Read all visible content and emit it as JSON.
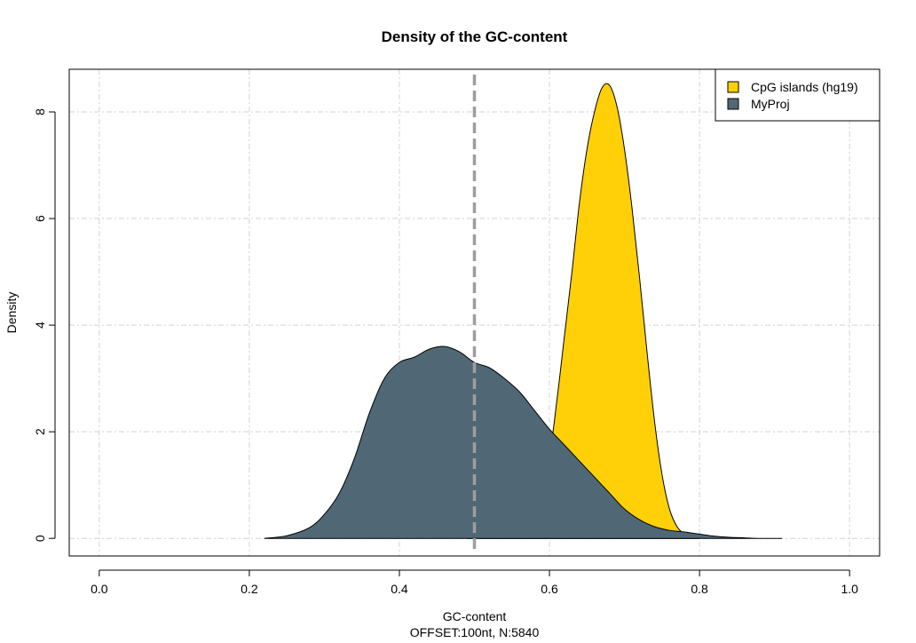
{
  "chart_data": {
    "type": "area",
    "title": "Density of the GC-content",
    "xlabel": "GC-content",
    "xlabel_sub": "OFFSET:100nt, N:5840",
    "ylabel": "Density",
    "xlim": [
      -0.04,
      1.04
    ],
    "ylim": [
      -0.33,
      8.8
    ],
    "x_ticks": [
      0.0,
      0.2,
      0.4,
      0.6,
      0.8,
      1.0
    ],
    "x_tick_labels": [
      "0.0",
      "0.2",
      "0.4",
      "0.6",
      "0.8",
      "1.0"
    ],
    "y_ticks": [
      0,
      2,
      4,
      6,
      8
    ],
    "y_tick_labels": [
      "0",
      "2",
      "4",
      "6",
      "8"
    ],
    "grid": true,
    "legend_position": "top-right",
    "reference_line": {
      "x": 0.5,
      "style": "dashed",
      "color": "#9e9e9e"
    },
    "series": [
      {
        "name": "CpG islands (hg19)",
        "color": "#FFD008",
        "x": [
          0.49,
          0.55,
          0.58,
          0.6,
          0.61,
          0.62,
          0.63,
          0.64,
          0.65,
          0.66,
          0.67,
          0.68,
          0.69,
          0.7,
          0.71,
          0.72,
          0.73,
          0.74,
          0.75,
          0.76,
          0.77,
          0.78,
          0.79,
          0.8
        ],
        "y": [
          0.0,
          0.15,
          0.6,
          1.6,
          2.6,
          3.8,
          5.0,
          6.3,
          7.3,
          8.0,
          8.45,
          8.5,
          8.1,
          7.3,
          6.2,
          4.9,
          3.5,
          2.2,
          1.2,
          0.55,
          0.22,
          0.08,
          0.02,
          0.0
        ]
      },
      {
        "name": "MyProj",
        "color": "#506876",
        "x": [
          0.22,
          0.25,
          0.28,
          0.3,
          0.32,
          0.34,
          0.36,
          0.38,
          0.4,
          0.42,
          0.44,
          0.46,
          0.48,
          0.5,
          0.52,
          0.54,
          0.56,
          0.58,
          0.6,
          0.62,
          0.64,
          0.66,
          0.68,
          0.7,
          0.72,
          0.74,
          0.76,
          0.78,
          0.8,
          0.82,
          0.84,
          0.86,
          0.88,
          0.91
        ],
        "y": [
          0.0,
          0.05,
          0.2,
          0.45,
          0.85,
          1.5,
          2.35,
          3.0,
          3.3,
          3.4,
          3.55,
          3.6,
          3.5,
          3.3,
          3.2,
          3.0,
          2.75,
          2.4,
          2.05,
          1.75,
          1.45,
          1.15,
          0.85,
          0.55,
          0.35,
          0.22,
          0.15,
          0.12,
          0.08,
          0.04,
          0.02,
          0.01,
          0.0,
          0.0
        ]
      }
    ]
  }
}
